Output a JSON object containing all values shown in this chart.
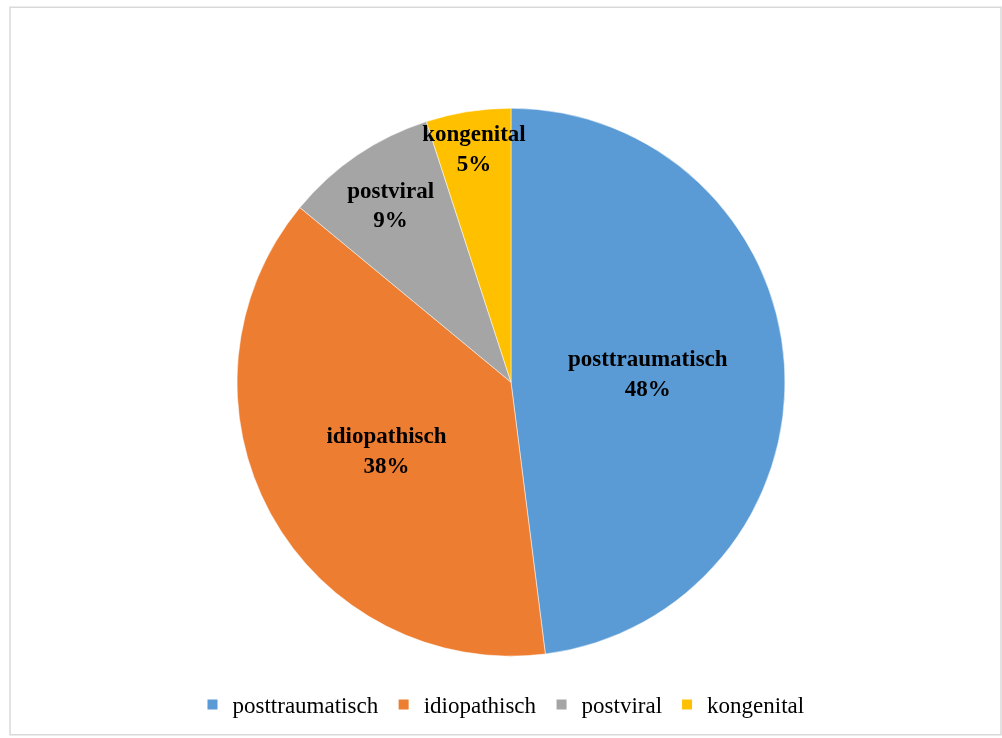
{
  "chart_data": {
    "type": "pie",
    "categories": [
      "posttraumatisch",
      "idiopathisch",
      "postviral",
      "kongenital"
    ],
    "values": [
      48,
      38,
      9,
      5
    ],
    "colors": [
      "#5b9bd5",
      "#ed7d31",
      "#a5a5a5",
      "#ffc000"
    ],
    "value_labels": [
      "48%",
      "38%",
      "9%",
      "5%"
    ],
    "legend": "bottom"
  }
}
